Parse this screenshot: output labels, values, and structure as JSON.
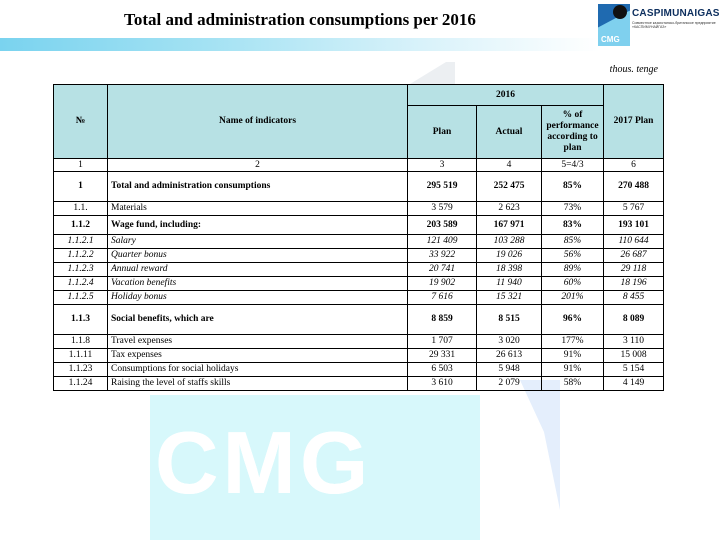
{
  "title": "Total and administration consumptions per 2016",
  "logo": {
    "name": "CASPIMUNAIGAS",
    "mark_text": "CMG",
    "subtitle": "Совместное казахстанско-британское предприятие «КАСПИМУНАЙГАЗ»"
  },
  "watermark": "CMG",
  "unit_label": "thous. tenge",
  "table": {
    "headers": {
      "no": "№",
      "name": "Name of indicators",
      "year_group": "2016",
      "plan": "Plan",
      "actual": "Actual",
      "performance": "% of performance according to plan",
      "next_plan": "2017  Plan"
    },
    "column_numbers": [
      "1",
      "2",
      "3",
      "4",
      "5=4/3",
      "6"
    ],
    "rows": [
      {
        "no": "1",
        "name": "Total and administration consumptions",
        "plan": "295 519",
        "actual": "252 475",
        "pct": "85%",
        "plan2017": "270 488",
        "style": "bold-tall"
      },
      {
        "no": "1.1.",
        "name": "Materials",
        "plan": "3 579",
        "actual": "2 623",
        "pct": "73%",
        "plan2017": "5 767",
        "style": "normal"
      },
      {
        "no": "1.1.2",
        "name": "Wage fund, including:",
        "plan": "203 589",
        "actual": "167 971",
        "pct": "83%",
        "plan2017": "193 101",
        "style": "bold"
      },
      {
        "no": "1.1.2.1",
        "name": "Salary",
        "plan": "121 409",
        "actual": "103 288",
        "pct": "85%",
        "plan2017": "110 644",
        "style": "italic"
      },
      {
        "no": "1.1.2.2",
        "name": "Quarter bonus",
        "plan": "33 922",
        "actual": "19 026",
        "pct": "56%",
        "plan2017": "26 687",
        "style": "italic"
      },
      {
        "no": "1.1.2.3",
        "name": "Annual reward",
        "plan": "20 741",
        "actual": "18 398",
        "pct": "89%",
        "plan2017": "29 118",
        "style": "italic"
      },
      {
        "no": "1.1.2.4",
        "name": "Vacation benefits",
        "plan": "19 902",
        "actual": "11 940",
        "pct": "60%",
        "plan2017": "18 196",
        "style": "italic"
      },
      {
        "no": "1.1.2.5",
        "name": "Holiday bonus",
        "plan": "7 616",
        "actual": "15 321",
        "pct": "201%",
        "plan2017": "8 455",
        "style": "italic"
      },
      {
        "no": "1.1.3",
        "name": "Social benefits, which are",
        "plan": "8 859",
        "actual": "8 515",
        "pct": "96%",
        "plan2017": "8 089",
        "style": "bold-tall"
      },
      {
        "no": "1.1.8",
        "name": "Travel expenses",
        "plan": "1 707",
        "actual": "3 020",
        "pct": "177%",
        "plan2017": "3 110",
        "style": "normal"
      },
      {
        "no": "1.1.11",
        "name": "Tax expenses",
        "plan": "29 331",
        "actual": "26 613",
        "pct": "91%",
        "plan2017": "15 008",
        "style": "normal"
      },
      {
        "no": "1.1.23",
        "name": "Consumptions for social holidays",
        "plan": "6 503",
        "actual": "5 948",
        "pct": "91%",
        "plan2017": "5 154",
        "style": "normal"
      },
      {
        "no": "1.1.24",
        "name": "Raising the level of staffs skills",
        "plan": "3 610",
        "actual": "2 079",
        "pct": "58%",
        "plan2017": "4 149",
        "style": "normal"
      }
    ]
  },
  "colors": {
    "header_fill": "#b7e1e4",
    "band_start": "#7ad3ef",
    "watermark_fill": "#d7f8fb",
    "logo_blue": "#1f6ab0"
  }
}
